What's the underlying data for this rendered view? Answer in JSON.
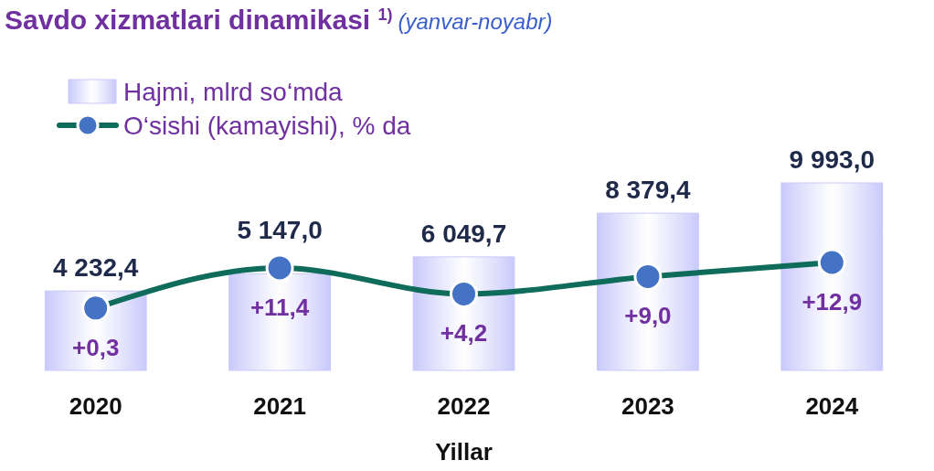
{
  "chart_data": {
    "type": "bar",
    "title": "Savdo xizmatlari dinamikasi $^{1)}$",
    "subtitle": "(yanvar-noyabr)",
    "xlabel": "Yillar",
    "categories": [
      "2020",
      "2021",
      "2022",
      "2023",
      "2024"
    ],
    "series": [
      {
        "name": "Hajmi, mlrd so‘mda",
        "color": "#c9c9fb",
        "values": [
          4232.4,
          5147.0,
          6049.7,
          8379.4,
          9993.0
        ],
        "value_labels": [
          "4 232,4",
          "5 147,0",
          "6 049,7",
          "8 379,4",
          "9 993,0"
        ]
      },
      {
        "name": "O‘sishi (kamayishi), % da",
        "type": "line",
        "axis": "y2",
        "color": "#0f6b5a",
        "values": [
          0.3,
          11.4,
          4.2,
          9.0,
          12.9
        ],
        "value_labels": [
          "+0,3",
          "+11,4",
          "+4,2",
          "+9,0",
          "+12,9"
        ]
      }
    ],
    "legend": "top left",
    "marker": "circle"
  }
}
